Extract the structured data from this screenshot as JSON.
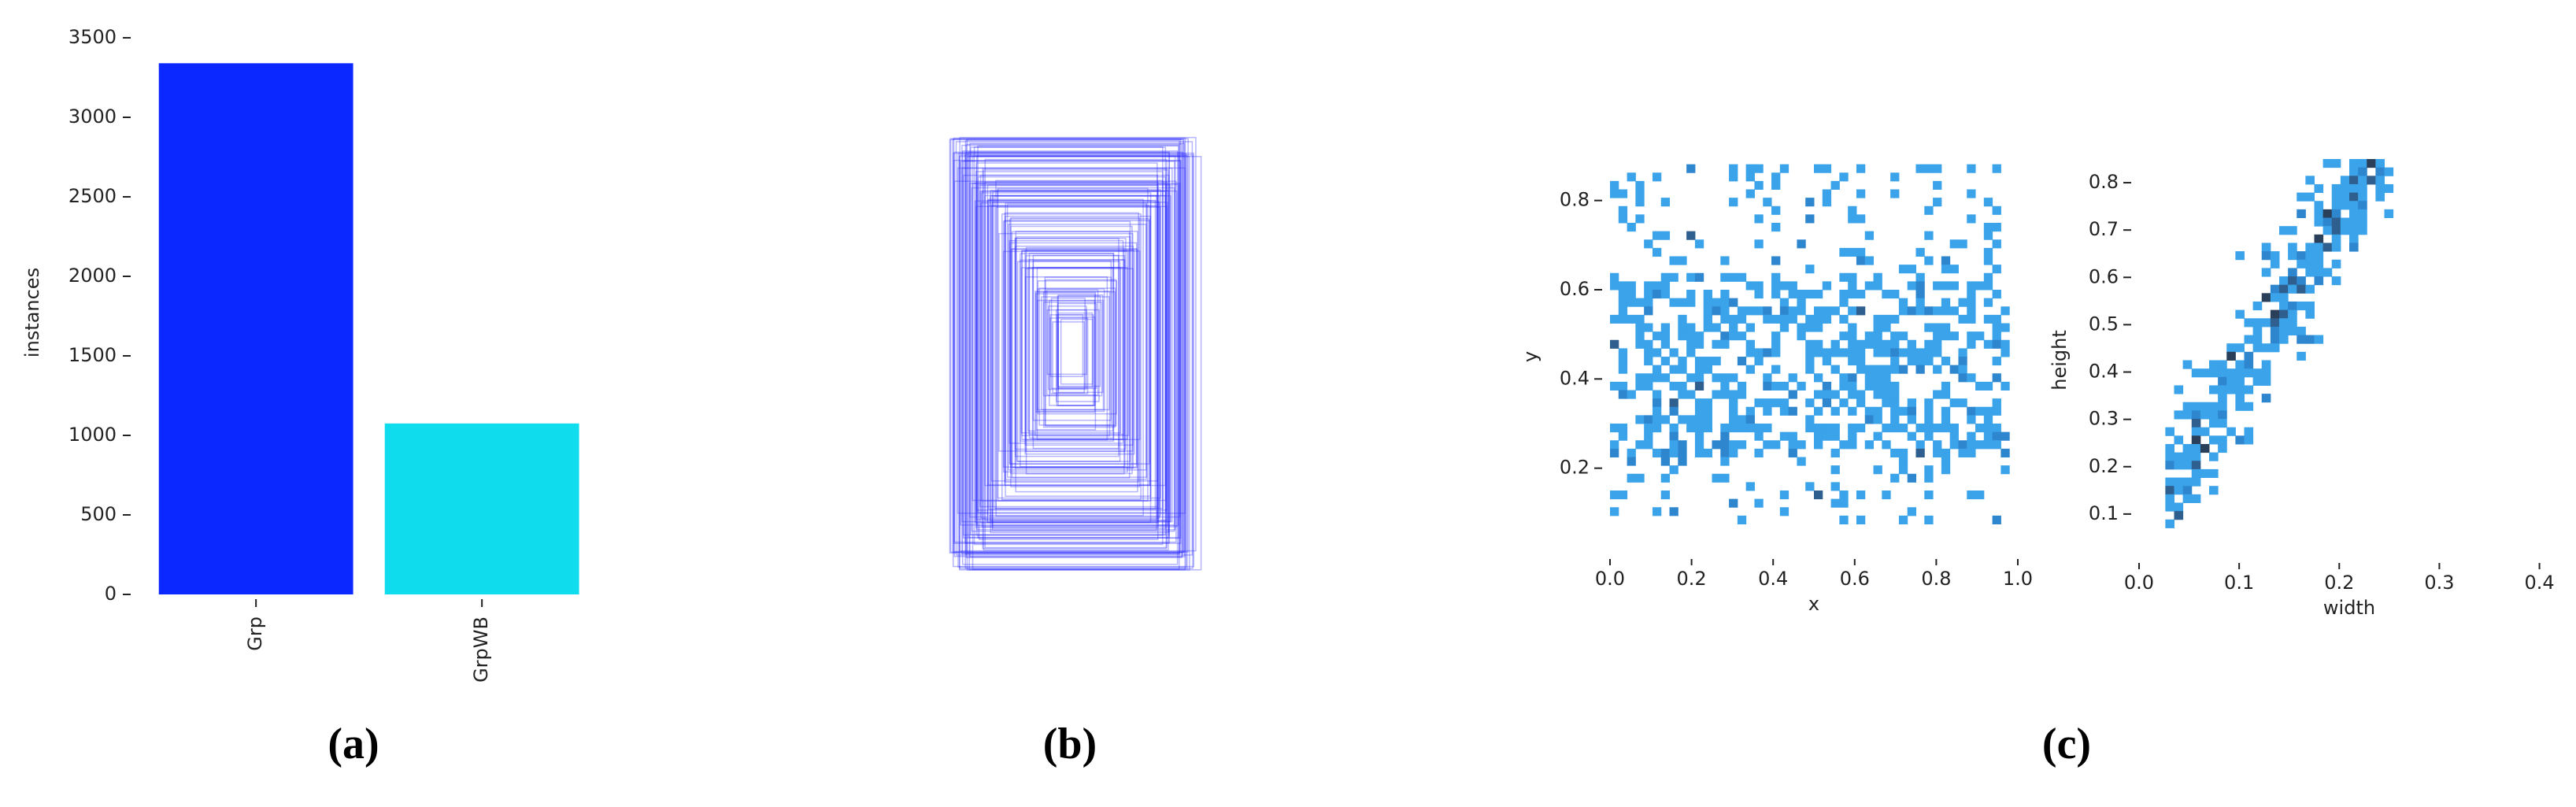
{
  "chart_data": [
    {
      "type": "bar",
      "label": "(a)",
      "ylabel": "instances",
      "categories": [
        "Grp",
        "GrpWB"
      ],
      "values": [
        3340,
        1075
      ],
      "colors": [
        "#0a28ff",
        "#0fdcec"
      ],
      "ylim": [
        0,
        3500
      ],
      "yticks": [
        0,
        500,
        1000,
        1500,
        2000,
        2500,
        3000,
        3500
      ]
    },
    {
      "type": "boxes",
      "label": "(b)",
      "color": "#2a2aff"
    },
    {
      "type": "histogram2d",
      "label": "(c)",
      "xlabel": "x",
      "ylabel": "y",
      "xlim": [
        0,
        1
      ],
      "ylim": [
        0,
        0.9
      ],
      "xticks": [
        {
          "value": 0,
          "label": "0.0"
        },
        0.2,
        0.4,
        0.6,
        0.8,
        {
          "value": 1,
          "label": "1.0"
        }
      ],
      "yticks": [
        0.2,
        0.4,
        0.6,
        0.8
      ],
      "color": "#3ba3ea"
    },
    {
      "type": "histogram2d",
      "xlabel": "width",
      "ylabel": "height",
      "xlim": [
        0,
        0.42
      ],
      "ylim": [
        0,
        0.85
      ],
      "xticks": [
        {
          "value": 0,
          "label": "0.0"
        },
        0.1,
        0.2,
        0.3,
        0.4
      ],
      "yticks": [
        0.1,
        0.2,
        0.3,
        0.4,
        0.5,
        0.6,
        0.7,
        0.8
      ],
      "color": "#3ba3ea"
    }
  ]
}
